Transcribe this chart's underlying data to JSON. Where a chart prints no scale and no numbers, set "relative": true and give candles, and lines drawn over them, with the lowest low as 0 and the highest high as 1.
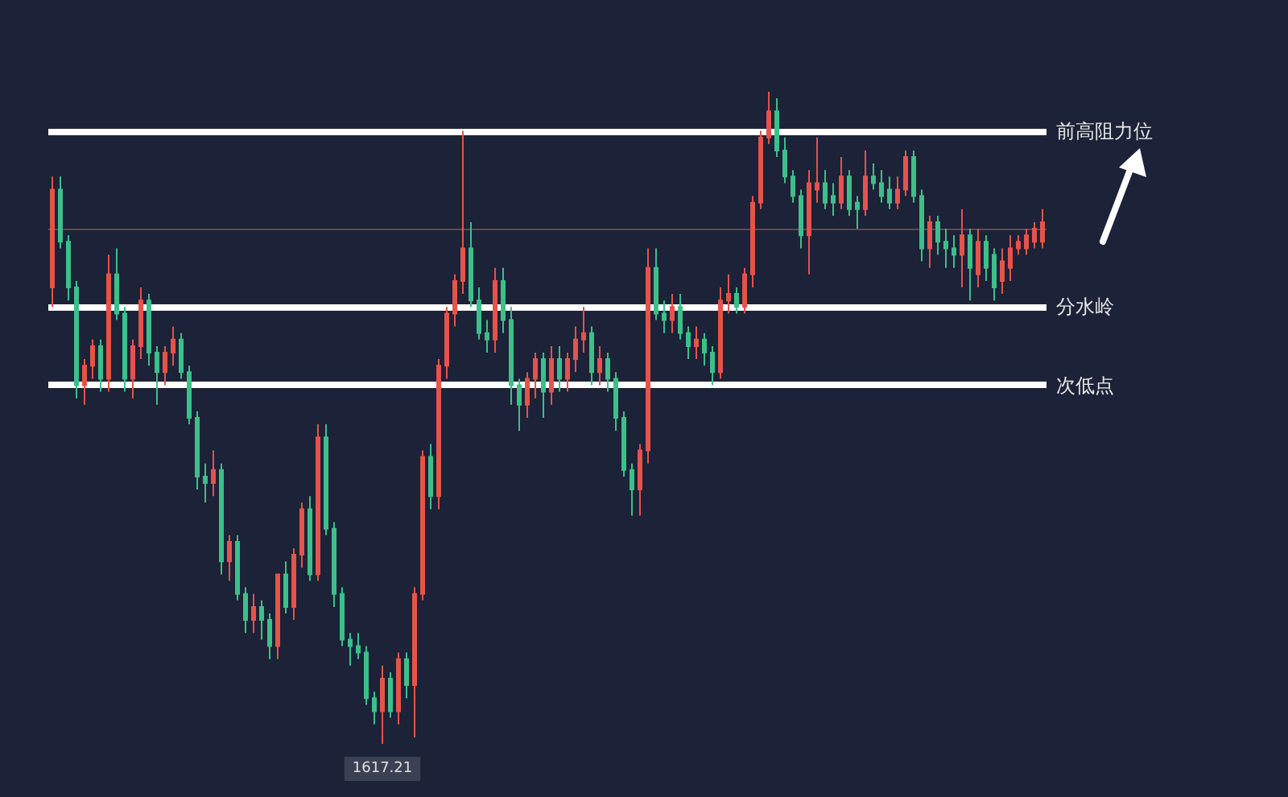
{
  "chart_data": {
    "type": "candlestick",
    "relative": true,
    "categories": [
      null,
      null,
      null,
      null,
      null,
      null,
      null,
      null,
      null,
      null,
      null,
      null,
      null,
      null,
      null,
      null,
      null,
      null,
      null,
      null,
      null,
      null,
      null,
      null,
      null,
      null,
      null,
      null,
      null,
      null,
      null,
      null,
      null,
      null,
      null,
      null,
      null,
      null,
      null,
      null,
      null,
      null,
      null,
      null,
      null,
      null,
      null,
      null,
      null,
      null,
      null,
      null,
      null,
      null,
      null,
      null,
      null,
      null,
      null,
      null,
      null,
      null,
      null,
      null,
      null,
      null,
      null,
      null,
      null,
      null,
      null,
      null,
      null,
      null,
      null,
      null,
      null,
      null,
      null,
      null,
      null,
      null,
      null,
      null,
      null,
      null,
      null,
      null,
      null,
      null,
      null,
      null,
      null,
      null,
      null,
      null,
      null,
      null,
      null,
      null,
      null,
      null,
      null,
      null,
      null,
      null,
      null,
      null,
      null,
      null,
      null,
      null,
      null,
      null,
      null,
      null,
      null,
      null,
      null,
      null,
      null,
      null,
      null,
      null
    ],
    "ohlc": [
      [
        0.7,
        0.87,
        0.67,
        0.85
      ],
      [
        0.85,
        0.87,
        0.76,
        0.77
      ],
      [
        0.77,
        0.78,
        0.68,
        0.7
      ],
      [
        0.7,
        0.71,
        0.53,
        0.55
      ],
      [
        0.55,
        0.59,
        0.52,
        0.58
      ],
      [
        0.58,
        0.62,
        0.56,
        0.61
      ],
      [
        0.61,
        0.62,
        0.54,
        0.56
      ],
      [
        0.56,
        0.75,
        0.54,
        0.72
      ],
      [
        0.72,
        0.76,
        0.65,
        0.66
      ],
      [
        0.66,
        0.67,
        0.54,
        0.56
      ],
      [
        0.56,
        0.62,
        0.53,
        0.61
      ],
      [
        0.61,
        0.7,
        0.59,
        0.68
      ],
      [
        0.68,
        0.69,
        0.58,
        0.6
      ],
      [
        0.6,
        0.61,
        0.52,
        0.57
      ],
      [
        0.57,
        0.61,
        0.55,
        0.6
      ],
      [
        0.6,
        0.64,
        0.58,
        0.62
      ],
      [
        0.62,
        0.63,
        0.56,
        0.57
      ],
      [
        0.57,
        0.58,
        0.49,
        0.5
      ],
      [
        0.5,
        0.51,
        0.39,
        0.41
      ],
      [
        0.41,
        0.43,
        0.37,
        0.4
      ],
      [
        0.4,
        0.45,
        0.38,
        0.42
      ],
      [
        0.42,
        0.43,
        0.26,
        0.28
      ],
      [
        0.28,
        0.32,
        0.25,
        0.31
      ],
      [
        0.31,
        0.32,
        0.22,
        0.23
      ],
      [
        0.23,
        0.24,
        0.17,
        0.19
      ],
      [
        0.19,
        0.23,
        0.17,
        0.21
      ],
      [
        0.21,
        0.22,
        0.16,
        0.19
      ],
      [
        0.19,
        0.2,
        0.13,
        0.15
      ],
      [
        0.15,
        0.26,
        0.13,
        0.26
      ],
      [
        0.26,
        0.28,
        0.2,
        0.21
      ],
      [
        0.21,
        0.3,
        0.19,
        0.29
      ],
      [
        0.29,
        0.37,
        0.27,
        0.36
      ],
      [
        0.36,
        0.38,
        0.25,
        0.26
      ],
      [
        0.26,
        0.49,
        0.25,
        0.47
      ],
      [
        0.47,
        0.49,
        0.32,
        0.33
      ],
      [
        0.33,
        0.34,
        0.21,
        0.23
      ],
      [
        0.23,
        0.24,
        0.15,
        0.16
      ],
      [
        0.16,
        0.17,
        0.12,
        0.15
      ],
      [
        0.15,
        0.17,
        0.13,
        0.14
      ],
      [
        0.14,
        0.15,
        0.06,
        0.07
      ],
      [
        0.07,
        0.08,
        0.03,
        0.05
      ],
      [
        0.05,
        0.12,
        0,
        0.1
      ],
      [
        0.1,
        0.11,
        0.04,
        0.05
      ],
      [
        0.05,
        0.14,
        0.03,
        0.13
      ],
      [
        0.13,
        0.14,
        0.07,
        0.09
      ],
      [
        0.09,
        0.24,
        0.01,
        0.23
      ],
      [
        0.23,
        0.45,
        0.22,
        0.44
      ],
      [
        0.44,
        0.46,
        0.36,
        0.38
      ],
      [
        0.38,
        0.59,
        0.36,
        0.58
      ],
      [
        0.58,
        0.67,
        0.56,
        0.66
      ],
      [
        0.66,
        0.72,
        0.64,
        0.71
      ],
      [
        0.71,
        0.94,
        0.69,
        0.76
      ],
      [
        0.76,
        0.8,
        0.67,
        0.68
      ],
      [
        0.68,
        0.7,
        0.62,
        0.63
      ],
      [
        0.63,
        0.65,
        0.6,
        0.62
      ],
      [
        0.62,
        0.73,
        0.6,
        0.71
      ],
      [
        0.71,
        0.73,
        0.63,
        0.65
      ],
      [
        0.65,
        0.67,
        0.52,
        0.55
      ],
      [
        0.55,
        0.56,
        0.48,
        0.52
      ],
      [
        0.52,
        0.57,
        0.5,
        0.56
      ],
      [
        0.56,
        0.6,
        0.53,
        0.59
      ],
      [
        0.59,
        0.6,
        0.5,
        0.54
      ],
      [
        0.54,
        0.61,
        0.52,
        0.59
      ],
      [
        0.59,
        0.61,
        0.54,
        0.56
      ],
      [
        0.56,
        0.6,
        0.54,
        0.59
      ],
      [
        0.59,
        0.64,
        0.57,
        0.62
      ],
      [
        0.62,
        0.67,
        0.6,
        0.63
      ],
      [
        0.63,
        0.64,
        0.55,
        0.57
      ],
      [
        0.57,
        0.61,
        0.55,
        0.59
      ],
      [
        0.59,
        0.6,
        0.54,
        0.56
      ],
      [
        0.56,
        0.57,
        0.48,
        0.5
      ],
      [
        0.5,
        0.51,
        0.41,
        0.42
      ],
      [
        0.42,
        0.43,
        0.35,
        0.39
      ],
      [
        0.39,
        0.46,
        0.35,
        0.45
      ],
      [
        0.45,
        0.76,
        0.43,
        0.73
      ],
      [
        0.73,
        0.76,
        0.65,
        0.66
      ],
      [
        0.66,
        0.68,
        0.63,
        0.65
      ],
      [
        0.65,
        0.69,
        0.63,
        0.67
      ],
      [
        0.67,
        0.69,
        0.62,
        0.63
      ],
      [
        0.63,
        0.64,
        0.59,
        0.61
      ],
      [
        0.61,
        0.64,
        0.59,
        0.62
      ],
      [
        0.62,
        0.63,
        0.58,
        0.6
      ],
      [
        0.6,
        0.61,
        0.55,
        0.57
      ],
      [
        0.57,
        0.7,
        0.56,
        0.68
      ],
      [
        0.68,
        0.72,
        0.66,
        0.69
      ],
      [
        0.69,
        0.7,
        0.66,
        0.67
      ],
      [
        0.67,
        0.73,
        0.66,
        0.72
      ],
      [
        0.72,
        0.84,
        0.7,
        0.83
      ],
      [
        0.83,
        0.94,
        0.82,
        0.93
      ],
      [
        0.93,
        1,
        0.92,
        0.97
      ],
      [
        0.97,
        0.99,
        0.9,
        0.91
      ],
      [
        0.91,
        0.93,
        0.86,
        0.87
      ],
      [
        0.87,
        0.88,
        0.83,
        0.84
      ],
      [
        0.84,
        0.85,
        0.76,
        0.78
      ],
      [
        0.78,
        0.88,
        0.72,
        0.86
      ],
      [
        0.85,
        0.93,
        0.83,
        0.86
      ],
      [
        0.86,
        0.88,
        0.82,
        0.83
      ],
      [
        0.84,
        0.86,
        0.81,
        0.83
      ],
      [
        0.83,
        0.9,
        0.82,
        0.87
      ],
      [
        0.87,
        0.88,
        0.81,
        0.82
      ],
      [
        0.83,
        0.84,
        0.79,
        0.82
      ],
      [
        0.82,
        0.91,
        0.81,
        0.87
      ],
      [
        0.87,
        0.89,
        0.85,
        0.86
      ],
      [
        0.86,
        0.88,
        0.83,
        0.84
      ],
      [
        0.85,
        0.87,
        0.82,
        0.83
      ],
      [
        0.83,
        0.87,
        0.82,
        0.85
      ],
      [
        0.85,
        0.91,
        0.84,
        0.9
      ],
      [
        0.9,
        0.91,
        0.83,
        0.84
      ],
      [
        0.84,
        0.85,
        0.74,
        0.76
      ],
      [
        0.76,
        0.81,
        0.73,
        0.8
      ],
      [
        0.8,
        0.81,
        0.75,
        0.77
      ],
      [
        0.77,
        0.79,
        0.73,
        0.76
      ],
      [
        0.76,
        0.78,
        0.73,
        0.75
      ],
      [
        0.75,
        0.82,
        0.7,
        0.78
      ],
      [
        0.78,
        0.79,
        0.68,
        0.73
      ],
      [
        0.72,
        0.79,
        0.7,
        0.77
      ],
      [
        0.77,
        0.78,
        0.71,
        0.73
      ],
      [
        0.75,
        0.76,
        0.68,
        0.7
      ],
      [
        0.71,
        0.76,
        0.69,
        0.74
      ],
      [
        0.73,
        0.78,
        0.71,
        0.76
      ],
      [
        0.76,
        0.78,
        0.75,
        0.77
      ],
      [
        0.76,
        0.79,
        0.75,
        0.78
      ],
      [
        0.77,
        0.8,
        0.76,
        0.79
      ],
      [
        0.77,
        0.82,
        0.76,
        0.8
      ]
    ],
    "ref_lines": [
      {
        "axis": "y",
        "value": 0.94,
        "label": "前高阻力位",
        "color": "#ffffff"
      },
      {
        "axis": "y",
        "value": 0.67,
        "label": "分水岭",
        "color": "#ffffff"
      },
      {
        "axis": "y",
        "value": 0.55,
        "label": "次低点",
        "color": "#ffffff"
      },
      {
        "axis": "y",
        "value": 0.79,
        "color": "#5b4b55"
      }
    ],
    "annotations": [
      "1617.21"
    ]
  }
}
